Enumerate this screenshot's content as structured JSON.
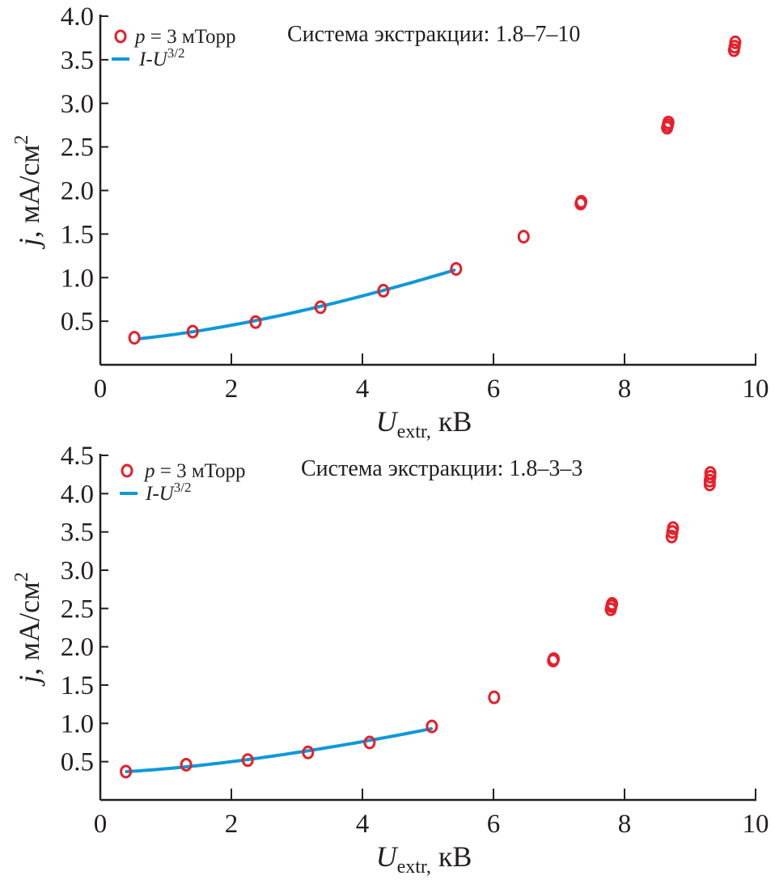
{
  "colors": {
    "marker": "#e4202b",
    "fit": "#0f98d8",
    "axis": "#231f20"
  },
  "chart_data": [
    {
      "type": "scatter",
      "annotation": "Система экстракции: 1.8–7–10",
      "xlabel": {
        "main": "U",
        "sub": "extr,",
        "unit": " кВ"
      },
      "ylabel": {
        "var": "j",
        "unit": ", мА/см",
        "sup": "2"
      },
      "xlim": [
        0,
        10
      ],
      "ylim": [
        0,
        4.0
      ],
      "xticks": [
        "0",
        "2",
        "4",
        "6",
        "8",
        "10"
      ],
      "yticks": [
        "0.5",
        "1.0",
        "1.5",
        "2.0",
        "2.5",
        "3.0",
        "3.5",
        "4.0"
      ],
      "legend": {
        "placement": "top-left",
        "markers": {
          "var": "p",
          "text": " = 3 мТорр"
        },
        "fit": {
          "var": "I-U",
          "sup": "3/2"
        }
      },
      "series": [
        {
          "name": "p = 3 мТорр",
          "kind": "scatter",
          "x": [
            0.52,
            1.41,
            2.37,
            3.36,
            4.32,
            5.43,
            6.46,
            7.33,
            7.34,
            8.65,
            8.66,
            8.67,
            9.67,
            9.68,
            9.69
          ],
          "y": [
            0.31,
            0.38,
            0.49,
            0.66,
            0.85,
            1.1,
            1.47,
            1.85,
            1.87,
            2.72,
            2.75,
            2.78,
            3.61,
            3.65,
            3.7
          ]
        },
        {
          "name": "I-U3/2",
          "kind": "line",
          "x_range": [
            0.6,
            5.4
          ],
          "model": {
            "a": 0.27,
            "b": 0.065,
            "power": 1.5
          }
        }
      ]
    },
    {
      "type": "scatter",
      "annotation": "Система экстракции: 1.8–3–3",
      "xlabel": {
        "main": "U",
        "sub": "extr,",
        "unit": " кВ"
      },
      "ylabel": {
        "var": "j",
        "unit": ", мА/см",
        "sup": "2"
      },
      "xlim": [
        0,
        10
      ],
      "ylim": [
        0,
        4.5
      ],
      "xticks": [
        "0",
        "2",
        "4",
        "6",
        "8",
        "10"
      ],
      "yticks": [
        "0.5",
        "1.0",
        "1.5",
        "2.0",
        "2.5",
        "3.0",
        "3.5",
        "4.0",
        "4.5"
      ],
      "legend": {
        "placement": "top-left",
        "markers": {
          "var": "p",
          "text": " = 3 мТорр"
        },
        "fit": {
          "var": "I-U",
          "sup": "3/2"
        }
      },
      "series": [
        {
          "name": "p = 3 мТорр",
          "kind": "scatter",
          "x": [
            0.39,
            1.31,
            2.25,
            3.17,
            4.11,
            5.06,
            6.01,
            6.91,
            6.92,
            7.79,
            7.8,
            7.81,
            8.72,
            8.73,
            8.74,
            9.3,
            9.3,
            9.31,
            9.31
          ],
          "y": [
            0.37,
            0.46,
            0.52,
            0.62,
            0.75,
            0.96,
            1.34,
            1.82,
            1.84,
            2.49,
            2.53,
            2.56,
            3.44,
            3.5,
            3.55,
            4.12,
            4.17,
            4.22,
            4.27
          ]
        },
        {
          "name": "I-U3/2",
          "kind": "line",
          "x_range": [
            0.4,
            5.05
          ],
          "model": {
            "a": 0.357,
            "b": 0.0505,
            "power": 1.5
          }
        }
      ]
    }
  ]
}
